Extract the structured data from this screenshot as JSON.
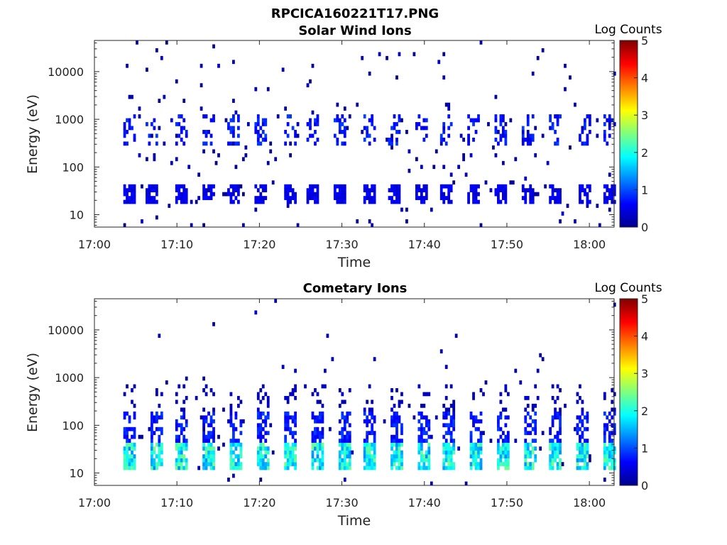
{
  "figure": {
    "title": "RPCICA160221T17.PNG"
  },
  "chart_data": [
    {
      "type": "heatmap",
      "title": "Solar Wind Ions",
      "xlabel": "Time",
      "ylabel": "Energy (eV)",
      "x_ticks": [
        "17:00",
        "17:10",
        "17:20",
        "17:30",
        "17:40",
        "17:50",
        "18:00"
      ],
      "y_ticks": [
        "10",
        "100",
        "1000",
        "10000"
      ],
      "x_range_min": [
        0,
        63
      ],
      "y_scale": "log",
      "y_range": [
        5.5,
        45000
      ],
      "colorbar": {
        "label": "Log Counts",
        "ticks": [
          "0",
          "1",
          "2",
          "3",
          "4",
          "5"
        ],
        "range": [
          0,
          5
        ]
      },
      "sweeps_min": [
        4.1,
        6.8,
        10.4,
        13.7,
        16.8,
        20.1,
        23.5,
        26.4,
        29.7,
        33.1,
        36.2,
        39.4,
        42.6,
        45.9,
        49.2,
        52.4,
        55.8,
        59.4,
        62.3
      ],
      "bands": [
        {
          "energy_min": 16,
          "energy_max": 40,
          "level": 0.35,
          "density": 0.75
        },
        {
          "energy_min": 300,
          "energy_max": 1300,
          "level": 0.5,
          "density": 0.35
        }
      ],
      "scatter_density": 0.025
    },
    {
      "type": "heatmap",
      "title": "Cometary Ions",
      "xlabel": "Time",
      "ylabel": "Energy (eV)",
      "x_ticks": [
        "17:00",
        "17:10",
        "17:20",
        "17:30",
        "17:40",
        "17:50",
        "18:00"
      ],
      "y_ticks": [
        "10",
        "100",
        "1000",
        "10000"
      ],
      "x_range_min": [
        0,
        63
      ],
      "y_scale": "log",
      "y_range": [
        5.5,
        45000
      ],
      "colorbar": {
        "label": "Log Counts",
        "ticks": [
          "0",
          "1",
          "2",
          "3",
          "4",
          "5"
        ],
        "range": [
          0,
          5
        ]
      },
      "sweeps_min": [
        4.1,
        7.3,
        10.5,
        13.8,
        16.9,
        20.2,
        23.5,
        26.8,
        30.1,
        33.3,
        36.5,
        39.7,
        42.9,
        46.1,
        49.4,
        52.6,
        55.8,
        59.0,
        62.2
      ],
      "bands": [
        {
          "energy_min": 12,
          "energy_max": 40,
          "level": 1.3,
          "density": 0.85
        },
        {
          "energy_min": 40,
          "energy_max": 180,
          "level": 0.5,
          "density": 0.55
        },
        {
          "energy_min": 180,
          "energy_max": 700,
          "level": 0.2,
          "density": 0.2
        }
      ],
      "scatter_density": 0.01
    }
  ]
}
